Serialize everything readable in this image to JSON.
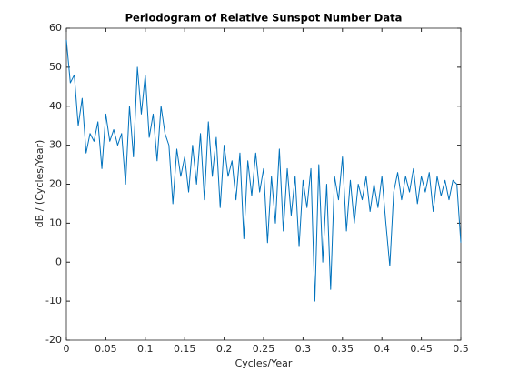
{
  "chart_data": {
    "type": "line",
    "title": "Periodogram of Relative Sunspot Number Data",
    "xlabel": "Cycles/Year",
    "ylabel": "dB / (Cycles/Year)",
    "x": [
      0,
      0.005,
      0.01,
      0.015,
      0.02,
      0.025,
      0.03,
      0.035,
      0.04,
      0.045,
      0.05,
      0.055,
      0.06,
      0.065,
      0.07,
      0.075,
      0.08,
      0.085,
      0.09,
      0.095,
      0.1,
      0.105,
      0.11,
      0.115,
      0.12,
      0.125,
      0.13,
      0.135,
      0.14,
      0.145,
      0.15,
      0.155,
      0.16,
      0.165,
      0.17,
      0.175,
      0.18,
      0.185,
      0.19,
      0.195,
      0.2,
      0.205,
      0.21,
      0.215,
      0.22,
      0.225,
      0.23,
      0.235,
      0.24,
      0.245,
      0.25,
      0.255,
      0.26,
      0.265,
      0.27,
      0.275,
      0.28,
      0.285,
      0.29,
      0.295,
      0.3,
      0.305,
      0.31,
      0.315,
      0.32,
      0.325,
      0.33,
      0.335,
      0.34,
      0.345,
      0.35,
      0.355,
      0.36,
      0.365,
      0.37,
      0.375,
      0.38,
      0.385,
      0.39,
      0.395,
      0.4,
      0.405,
      0.41,
      0.415,
      0.42,
      0.425,
      0.43,
      0.435,
      0.44,
      0.445,
      0.45,
      0.455,
      0.46,
      0.465,
      0.47,
      0.475,
      0.48,
      0.485,
      0.49,
      0.495,
      0.5
    ],
    "series": [
      {
        "color": "#0072bd",
        "values": [
          57,
          46,
          48,
          35,
          42,
          28,
          33,
          31,
          36,
          24,
          38,
          31,
          34,
          30,
          33,
          20,
          40,
          27,
          50,
          38,
          48,
          32,
          38,
          26,
          40,
          33,
          30,
          15,
          29,
          22,
          27,
          18,
          30,
          20,
          33,
          16,
          36,
          22,
          32,
          14,
          30,
          22,
          26,
          16,
          28,
          6,
          26,
          17,
          28,
          18,
          24,
          5,
          22,
          10,
          29,
          8,
          24,
          12,
          22,
          4,
          21,
          14,
          24,
          -10,
          25,
          0,
          20,
          -7,
          22,
          16,
          27,
          8,
          21,
          10,
          20,
          16,
          22,
          13,
          20,
          14,
          22,
          10,
          -1,
          18,
          23,
          16,
          22,
          18,
          24,
          15,
          22,
          18,
          23,
          13,
          22,
          17,
          21,
          16,
          21,
          20,
          5
        ]
      }
    ],
    "xlim": [
      0,
      0.5
    ],
    "ylim": [
      -20,
      60
    ],
    "xticks": [
      0,
      0.05,
      0.1,
      0.15,
      0.2,
      0.25,
      0.3,
      0.35,
      0.4,
      0.45,
      0.5
    ],
    "yticks": [
      -20,
      -10,
      0,
      10,
      20,
      30,
      40,
      50,
      60
    ]
  }
}
